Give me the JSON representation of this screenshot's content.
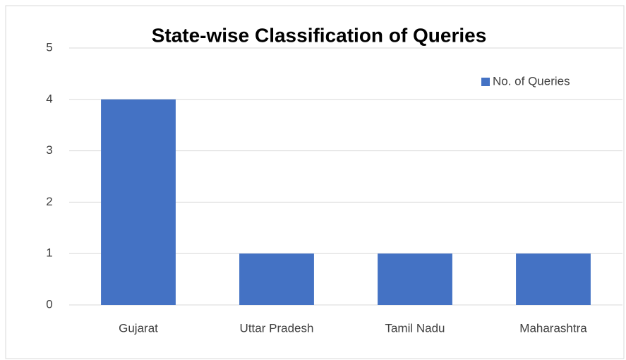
{
  "chart_data": {
    "type": "bar",
    "title": "State-wise Classification of Queries",
    "categories": [
      "Gujarat",
      "Uttar Pradesh",
      "Tamil Nadu",
      "Maharashtra"
    ],
    "series": [
      {
        "name": "No. of Queries",
        "color": "#4472c4",
        "values": [
          4,
          1,
          1,
          1
        ]
      }
    ],
    "ylim": [
      0,
      5
    ],
    "yticks": [
      0,
      1,
      2,
      3,
      4,
      5
    ],
    "grid": true,
    "legend": "top-right"
  }
}
